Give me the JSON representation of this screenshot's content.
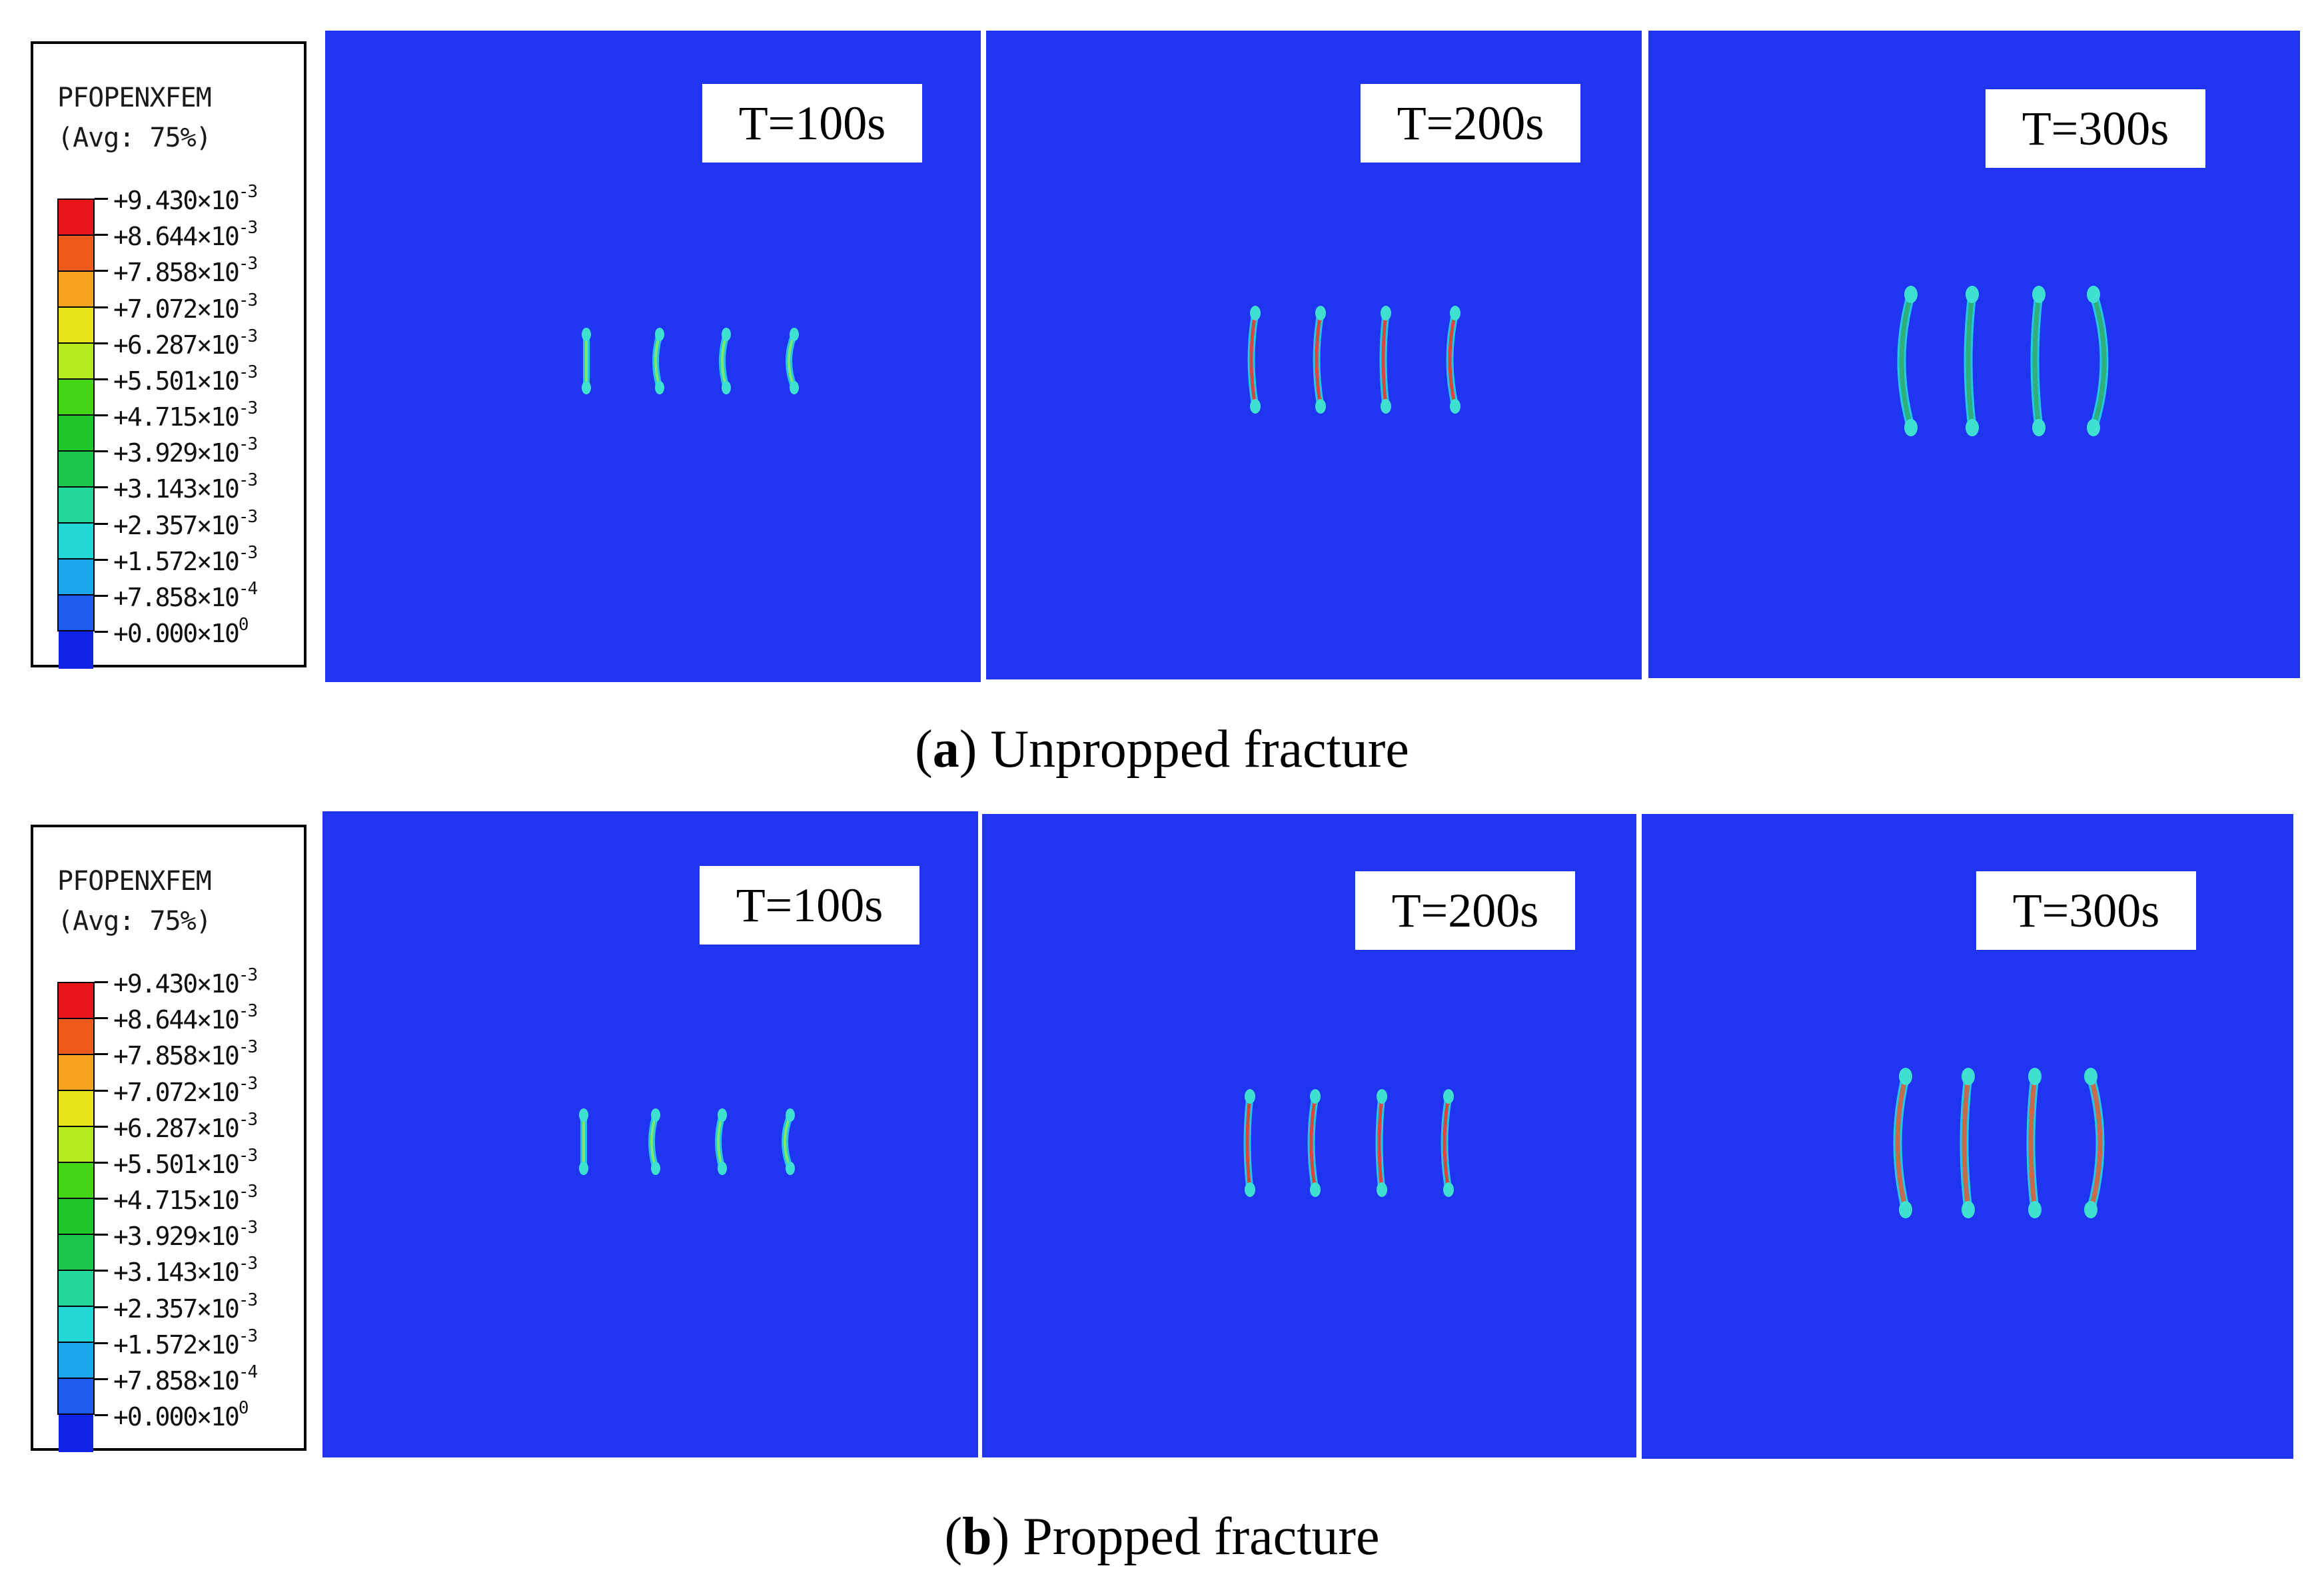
{
  "legend": {
    "title": "PFOPENXFEM",
    "subtitle": "(Avg: 75%)",
    "colors": [
      "#e8161a",
      "#f25a1b",
      "#f5a31f",
      "#e8e61a",
      "#b6ea1e",
      "#44d418",
      "#1fc72a",
      "#1cc64b",
      "#21d79c",
      "#22d6d8",
      "#1aa6e8",
      "#1e5cee",
      "#0f24e6"
    ],
    "values": [
      {
        "mantissa": "+9.430×10",
        "exp": "-3"
      },
      {
        "mantissa": "+8.644×10",
        "exp": "-3"
      },
      {
        "mantissa": "+7.858×10",
        "exp": "-3"
      },
      {
        "mantissa": "+7.072×10",
        "exp": "-3"
      },
      {
        "mantissa": "+6.287×10",
        "exp": "-3"
      },
      {
        "mantissa": "+5.501×10",
        "exp": "-3"
      },
      {
        "mantissa": "+4.715×10",
        "exp": "-3"
      },
      {
        "mantissa": "+3.929×10",
        "exp": "-3"
      },
      {
        "mantissa": "+3.143×10",
        "exp": "-3"
      },
      {
        "mantissa": "+2.357×10",
        "exp": "-3"
      },
      {
        "mantissa": "+1.572×10",
        "exp": "-3"
      },
      {
        "mantissa": "+7.858×10",
        "exp": "-4"
      },
      {
        "mantissa": "+0.000×10",
        "exp": "0"
      }
    ]
  },
  "rows": [
    {
      "caption_letter": "a",
      "caption_text": ") Unpropped fracture",
      "panels": [
        {
          "time": "T=100s"
        },
        {
          "time": "T=200s"
        },
        {
          "time": "T=300s"
        }
      ]
    },
    {
      "caption_letter": "b",
      "caption_text": ") Propped fracture",
      "panels": [
        {
          "time": "T=100s"
        },
        {
          "time": "T=200s"
        },
        {
          "time": "T=300s"
        }
      ]
    }
  ],
  "panel_background": "#1f35f0"
}
